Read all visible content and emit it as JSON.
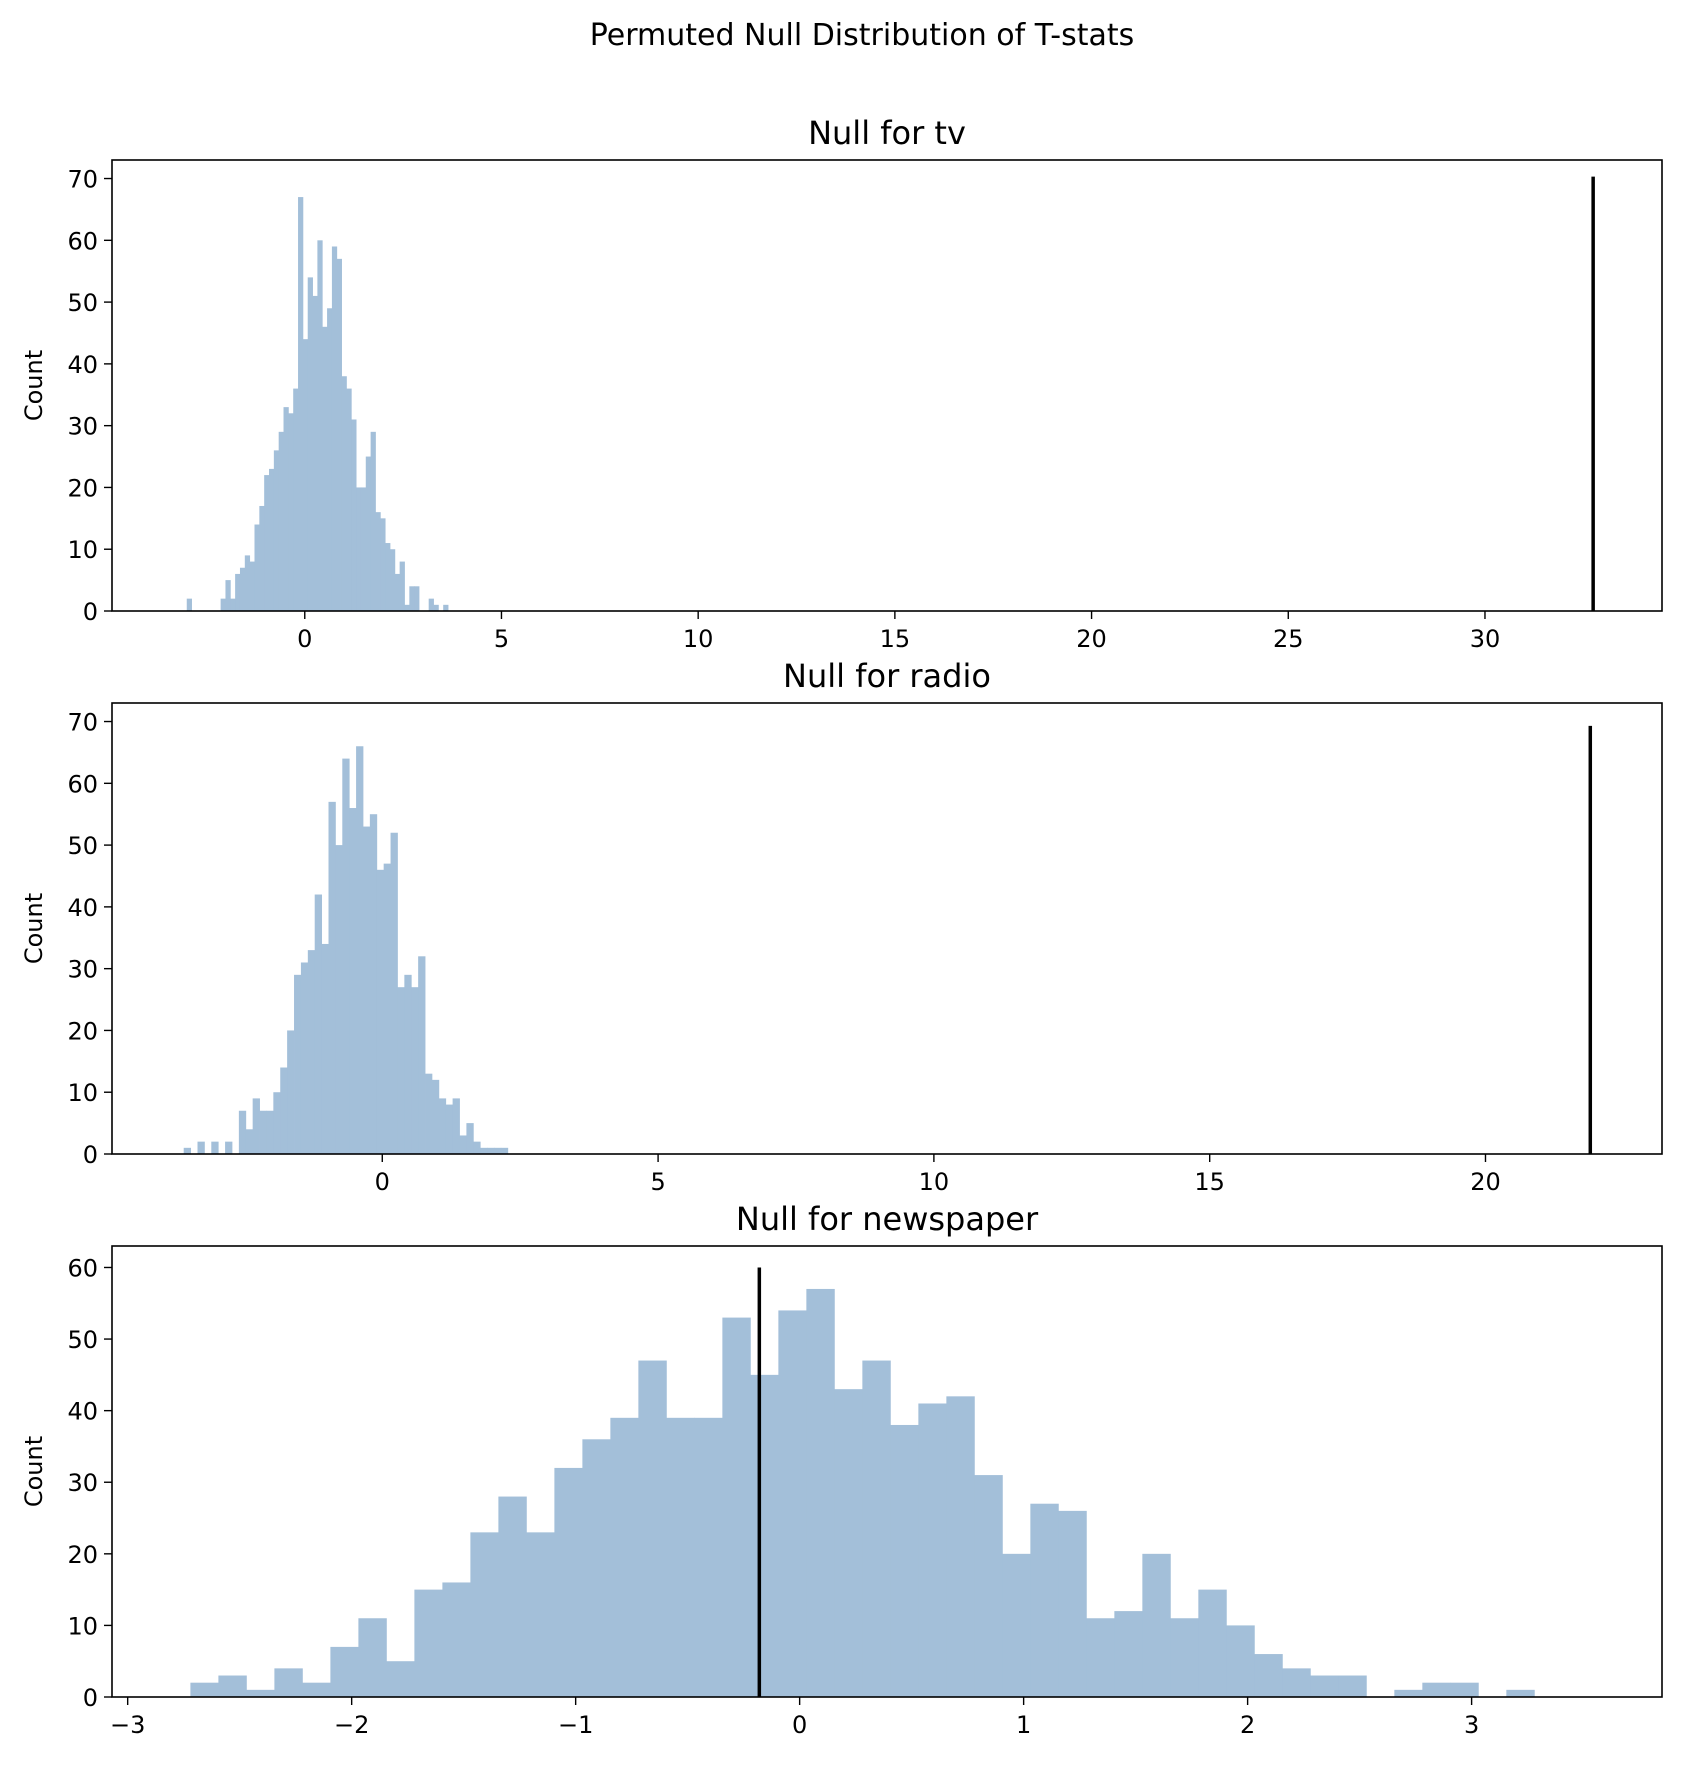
{
  "figure": {
    "suptitle": "Permuted Null Distribution of T-stats",
    "bar_color": "#a3bfd9",
    "line_color": "#000000"
  },
  "chart_data": [
    {
      "type": "bar",
      "title": "Null for tv",
      "xlabel": "",
      "ylabel": "Count",
      "xlim": [
        -4.9,
        34.5
      ],
      "ylim": [
        0,
        73
      ],
      "xticks": [
        0,
        5,
        10,
        15,
        20,
        25,
        30
      ],
      "yticks": [
        0,
        10,
        20,
        30,
        40,
        50,
        60,
        70
      ],
      "bin_width": 0.123,
      "bin_start": -3.0,
      "counts": [
        2,
        0,
        0,
        0,
        0,
        0,
        0,
        2,
        5,
        2,
        6,
        7,
        9,
        8,
        14,
        17,
        22,
        23,
        26,
        29,
        33,
        32,
        36,
        67,
        44,
        54,
        51,
        60,
        46,
        49,
        59,
        57,
        38,
        36,
        31,
        20,
        20,
        25,
        29,
        16,
        15,
        11,
        10,
        6,
        8,
        1,
        4,
        4,
        0,
        0,
        2,
        1,
        0,
        1
      ],
      "reference_line": {
        "x": 32.75,
        "height": 70.3
      }
    },
    {
      "type": "bar",
      "title": "Null for radio",
      "xlabel": "",
      "ylabel": "Count",
      "xlim": [
        -4.9,
        23.2
      ],
      "ylim": [
        0,
        73
      ],
      "xticks": [
        0,
        5,
        10,
        15,
        20
      ],
      "yticks": [
        0,
        10,
        20,
        30,
        40,
        50,
        60,
        70
      ],
      "bin_width": 0.125,
      "bin_start": -3.6,
      "counts": [
        1,
        0,
        2,
        0,
        2,
        0,
        2,
        0,
        7,
        4,
        9,
        7,
        7,
        10,
        14,
        20,
        29,
        31,
        33,
        42,
        34,
        57,
        50,
        64,
        56,
        66,
        53,
        55,
        46,
        47,
        52,
        27,
        29,
        27,
        32,
        13,
        12,
        9,
        8,
        9,
        3,
        5,
        2,
        1,
        1,
        1,
        1
      ],
      "reference_line": {
        "x": 21.9,
        "height": 69.3
      }
    },
    {
      "type": "bar",
      "title": "Null for newspaper",
      "xlabel": "",
      "ylabel": "Count",
      "xlim": [
        -3.07,
        3.85
      ],
      "ylim": [
        0,
        63
      ],
      "xticks": [
        -3,
        -2,
        -1,
        0,
        1,
        2,
        3
      ],
      "xtick_labels": [
        "−3",
        "−2",
        "−1",
        "0",
        "1",
        "2",
        "3"
      ],
      "yticks": [
        0,
        10,
        20,
        30,
        40,
        50,
        60
      ],
      "bin_width": 0.125,
      "bin_start": -2.72,
      "counts": [
        2,
        3,
        1,
        4,
        2,
        7,
        11,
        5,
        15,
        16,
        23,
        28,
        23,
        32,
        36,
        39,
        47,
        39,
        39,
        53,
        45,
        54,
        57,
        43,
        47,
        38,
        41,
        42,
        31,
        20,
        27,
        26,
        11,
        12,
        20,
        11,
        15,
        10,
        6,
        4,
        3,
        3,
        0,
        1,
        2,
        2,
        0,
        1
      ],
      "reference_line": {
        "x": -0.18,
        "height": 60
      }
    }
  ]
}
